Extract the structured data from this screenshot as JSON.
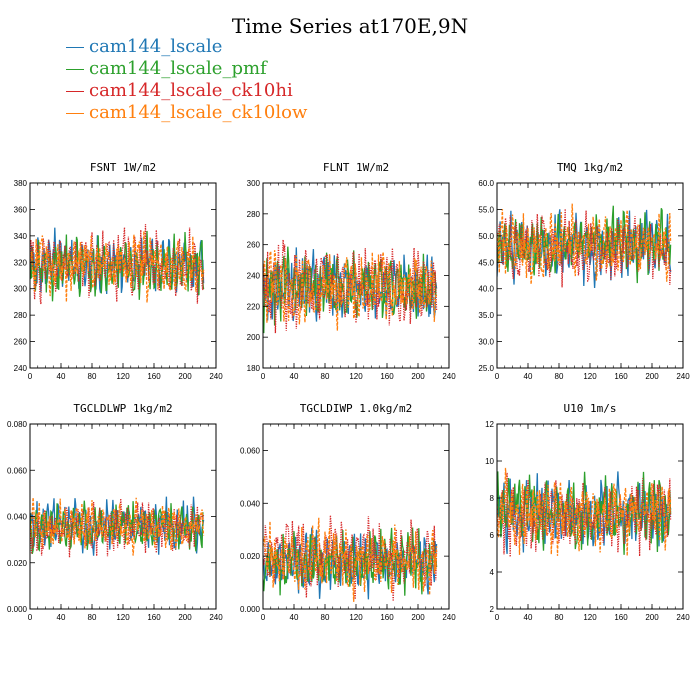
{
  "title": "Time Series at170E,9N",
  "legend": [
    {
      "label": "cam144_lscale",
      "color": "#1f77b4"
    },
    {
      "label": "cam144_lscale_pmf",
      "color": "#2ca02c"
    },
    {
      "label": "cam144_lscale_ck10hi",
      "color": "#d62728"
    },
    {
      "label": "cam144_lscale_ck10low",
      "color": "#ff7f0e"
    }
  ],
  "chart_data": [
    {
      "type": "line",
      "title": "FSNT  1W/m2",
      "xlim": [
        0,
        240
      ],
      "xticks": [
        "0",
        "40",
        "80",
        "120",
        "160",
        "200",
        "240"
      ],
      "ylim": [
        240,
        380
      ],
      "yticks": [
        "240",
        "260",
        "280",
        "300",
        "320",
        "340",
        "360",
        "380"
      ],
      "n": 225,
      "series": [
        {
          "name": "cam144_lscale",
          "color": "#1f77b4",
          "style": "solid",
          "seed": 11,
          "mean": 318,
          "amp": 22
        },
        {
          "name": "cam144_lscale_pmf",
          "color": "#2ca02c",
          "style": "solid",
          "seed": 23,
          "mean": 318,
          "amp": 22
        },
        {
          "name": "cam144_lscale_ck10hi",
          "color": "#d62728",
          "style": "dotted",
          "seed": 37,
          "mean": 318,
          "amp": 24
        },
        {
          "name": "cam144_lscale_ck10low",
          "color": "#ff7f0e",
          "style": "dashed",
          "seed": 51,
          "mean": 318,
          "amp": 23
        }
      ]
    },
    {
      "type": "line",
      "title": "FLNT  1W/m2",
      "xlim": [
        0,
        240
      ],
      "xticks": [
        "0",
        "40",
        "80",
        "120",
        "160",
        "200",
        "240"
      ],
      "ylim": [
        180,
        300
      ],
      "yticks": [
        "180",
        "200",
        "220",
        "240",
        "260",
        "280",
        "300"
      ],
      "n": 225,
      "series": [
        {
          "name": "cam144_lscale",
          "color": "#1f77b4",
          "style": "solid",
          "seed": 13,
          "mean": 232,
          "amp": 22
        },
        {
          "name": "cam144_lscale_pmf",
          "color": "#2ca02c",
          "style": "solid",
          "seed": 29,
          "mean": 232,
          "amp": 22
        },
        {
          "name": "cam144_lscale_ck10hi",
          "color": "#d62728",
          "style": "dotted",
          "seed": 41,
          "mean": 234,
          "amp": 26
        },
        {
          "name": "cam144_lscale_ck10low",
          "color": "#ff7f0e",
          "style": "dashed",
          "seed": 57,
          "mean": 232,
          "amp": 23
        }
      ]
    },
    {
      "type": "line",
      "title": "TMQ  1kg/m2",
      "xlim": [
        0,
        240
      ],
      "xticks": [
        "0",
        "40",
        "80",
        "120",
        "160",
        "200",
        "240"
      ],
      "ylim": [
        25.0,
        60.0
      ],
      "yticks": [
        "25.0",
        "30.0",
        "35.0",
        "40.0",
        "45.0",
        "50.0",
        "55.0",
        "60.0"
      ],
      "n": 225,
      "series": [
        {
          "name": "cam144_lscale",
          "color": "#1f77b4",
          "style": "solid",
          "seed": 17,
          "mean": 48,
          "amp": 6
        },
        {
          "name": "cam144_lscale_pmf",
          "color": "#2ca02c",
          "style": "solid",
          "seed": 31,
          "mean": 48.5,
          "amp": 6
        },
        {
          "name": "cam144_lscale_ck10hi",
          "color": "#d62728",
          "style": "dotted",
          "seed": 43,
          "mean": 47.5,
          "amp": 6.5
        },
        {
          "name": "cam144_lscale_ck10low",
          "color": "#ff7f0e",
          "style": "dashed",
          "seed": 59,
          "mean": 48,
          "amp": 6.2
        }
      ]
    },
    {
      "type": "line",
      "title": "TGCLDLWP  1kg/m2",
      "xlim": [
        0,
        240
      ],
      "xticks": [
        "0",
        "40",
        "80",
        "120",
        "160",
        "200",
        "240"
      ],
      "ylim": [
        0.0,
        0.08
      ],
      "yticks": [
        "0.000",
        "0.020",
        "0.040",
        "0.060",
        "0.080"
      ],
      "n": 225,
      "series": [
        {
          "name": "cam144_lscale",
          "color": "#1f77b4",
          "style": "solid",
          "seed": 19,
          "mean": 0.036,
          "amp": 0.01
        },
        {
          "name": "cam144_lscale_pmf",
          "color": "#2ca02c",
          "style": "solid",
          "seed": 33,
          "mean": 0.035,
          "amp": 0.01
        },
        {
          "name": "cam144_lscale_ck10hi",
          "color": "#d62728",
          "style": "dotted",
          "seed": 47,
          "mean": 0.035,
          "amp": 0.011
        },
        {
          "name": "cam144_lscale_ck10low",
          "color": "#ff7f0e",
          "style": "dashed",
          "seed": 61,
          "mean": 0.036,
          "amp": 0.01
        }
      ]
    },
    {
      "type": "line",
      "title": "TGCLDIWP  1.0kg/m2",
      "xlim": [
        0,
        240
      ],
      "xticks": [
        "0",
        "40",
        "80",
        "120",
        "160",
        "200",
        "240"
      ],
      "ylim": [
        0.0,
        0.07
      ],
      "yticks": [
        "0.000",
        "0.020",
        "0.040",
        "0.060"
      ],
      "n": 225,
      "series": [
        {
          "name": "cam144_lscale",
          "color": "#1f77b4",
          "style": "solid",
          "seed": 21,
          "mean": 0.018,
          "amp": 0.011
        },
        {
          "name": "cam144_lscale_pmf",
          "color": "#2ca02c",
          "style": "solid",
          "seed": 35,
          "mean": 0.018,
          "amp": 0.011
        },
        {
          "name": "cam144_lscale_ck10hi",
          "color": "#d62728",
          "style": "dotted",
          "seed": 49,
          "mean": 0.02,
          "amp": 0.013
        },
        {
          "name": "cam144_lscale_ck10low",
          "color": "#ff7f0e",
          "style": "dashed",
          "seed": 63,
          "mean": 0.019,
          "amp": 0.012
        }
      ]
    },
    {
      "type": "line",
      "title": "U10  1m/s",
      "xlim": [
        0,
        240
      ],
      "xticks": [
        "0",
        "40",
        "80",
        "120",
        "160",
        "200",
        "240"
      ],
      "ylim": [
        2,
        12
      ],
      "yticks": [
        "2",
        "4",
        "6",
        "8",
        "10",
        "12"
      ],
      "n": 225,
      "series": [
        {
          "name": "cam144_lscale",
          "color": "#1f77b4",
          "style": "solid",
          "seed": 25,
          "mean": 7.2,
          "amp": 1.9
        },
        {
          "name": "cam144_lscale_pmf",
          "color": "#2ca02c",
          "style": "solid",
          "seed": 39,
          "mean": 7.3,
          "amp": 1.9
        },
        {
          "name": "cam144_lscale_ck10hi",
          "color": "#d62728",
          "style": "dotted",
          "seed": 53,
          "mean": 7.1,
          "amp": 2.0
        },
        {
          "name": "cam144_lscale_ck10low",
          "color": "#ff7f0e",
          "style": "dashed",
          "seed": 67,
          "mean": 7.2,
          "amp": 1.9
        }
      ]
    }
  ]
}
